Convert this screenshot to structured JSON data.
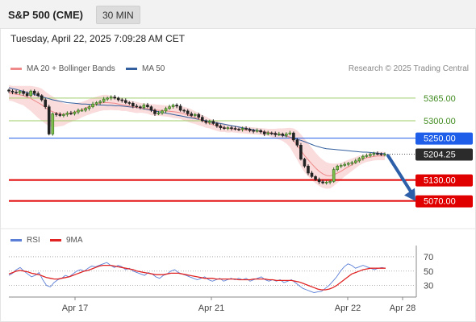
{
  "header": {
    "title": "S&P 500 (CME)",
    "timeframe": "30 MIN"
  },
  "timestamp": "Tuesday, April 22, 2025 7:09:28 AM CET",
  "legend": {
    "ma20": {
      "label": "MA 20 + Bollinger Bands",
      "color": "#f08a8a"
    },
    "ma50": {
      "label": "MA 50",
      "color": "#335f9e"
    }
  },
  "copyright": "Research © 2025 Trading Central",
  "rsi_legend": {
    "rsi": {
      "label": "RSI",
      "color": "#5b7fd6"
    },
    "ma9": {
      "label": "9MA",
      "color": "#e02424"
    }
  },
  "colors": {
    "resistance_line": "#9ccc65",
    "pivot_line": "#1f5ee8",
    "support_line": "#e00000",
    "band_fill": "#f9d6d6",
    "candle_up": "#2f6e1e",
    "candle_down": "#222222",
    "arrow": "#2d5fa8"
  },
  "chart_data": [
    {
      "type": "candlestick",
      "title": "S&P 500 (CME)",
      "x_tick_labels": [
        "Apr 17",
        "Apr 21",
        "Apr 22",
        "Apr 28"
      ],
      "y_range": [
        5000,
        5420
      ],
      "levels": [
        {
          "label": "5365.00",
          "value": 5365,
          "kind": "resistance"
        },
        {
          "label": "5300.00",
          "value": 5300,
          "kind": "resistance"
        },
        {
          "label": "5250.00",
          "value": 5250,
          "kind": "pivot"
        },
        {
          "label": "5130.00",
          "value": 5130,
          "kind": "support"
        },
        {
          "label": "5070.00",
          "value": 5070,
          "kind": "support"
        }
      ],
      "last_price": {
        "label": "5204.25",
        "value": 5204.25
      },
      "forecast": {
        "from": 5204.25,
        "to": 5070,
        "direction": "down"
      },
      "close_series": [
        5385,
        5382,
        5380,
        5384,
        5378,
        5372,
        5385,
        5378,
        5372,
        5360,
        5340,
        5262,
        5320,
        5318,
        5315,
        5318,
        5322,
        5320,
        5325,
        5330,
        5330,
        5335,
        5340,
        5348,
        5352,
        5355,
        5362,
        5365,
        5368,
        5365,
        5360,
        5358,
        5352,
        5350,
        5342,
        5340,
        5338,
        5345,
        5340,
        5330,
        5320,
        5322,
        5328,
        5335,
        5340,
        5345,
        5342,
        5330,
        5328,
        5320,
        5315,
        5318,
        5310,
        5300,
        5295,
        5298,
        5292,
        5285,
        5280,
        5278,
        5280,
        5278,
        5276,
        5275,
        5278,
        5276,
        5272,
        5270,
        5272,
        5268,
        5262,
        5265,
        5264,
        5260,
        5262,
        5258,
        5262,
        5265,
        5245,
        5230,
        5190,
        5170,
        5150,
        5140,
        5132,
        5125,
        5122,
        5124,
        5126,
        5160,
        5170,
        5172,
        5175,
        5178,
        5180,
        5185,
        5192,
        5198,
        5200,
        5204,
        5206,
        5205,
        5204,
        5204.25
      ],
      "ma20_series": [
        5380,
        5378,
        5376,
        5374,
        5372,
        5368,
        5364,
        5358,
        5352,
        5346,
        5338,
        5330,
        5326,
        5322,
        5320,
        5318,
        5320,
        5322,
        5325,
        5328,
        5332,
        5336,
        5340,
        5344,
        5347,
        5350,
        5352,
        5352,
        5351,
        5350,
        5348,
        5346,
        5344,
        5342,
        5340,
        5338,
        5337,
        5336,
        5334,
        5332,
        5331,
        5330,
        5329,
        5328,
        5327,
        5326,
        5325,
        5323,
        5320,
        5317,
        5313,
        5309,
        5305,
        5300,
        5296,
        5292,
        5288,
        5285,
        5282,
        5280,
        5278,
        5277,
        5276,
        5275,
        5274,
        5273,
        5272,
        5271,
        5270,
        5269,
        5268,
        5267,
        5265,
        5263,
        5262,
        5260,
        5257,
        5252,
        5242,
        5230,
        5215,
        5200,
        5188,
        5176,
        5165,
        5155,
        5148,
        5143,
        5142,
        5145,
        5150,
        5155,
        5162,
        5168,
        5174,
        5180,
        5186,
        5190,
        5194,
        5196,
        5198,
        5199,
        5199,
        5199
      ],
      "ma50_series": [
        5395,
        5392,
        5390,
        5387,
        5384,
        5381,
        5378,
        5375,
        5372,
        5369,
        5366,
        5363,
        5360,
        5358,
        5356,
        5354,
        5352,
        5351,
        5350,
        5349,
        5348,
        5348,
        5347,
        5346,
        5346,
        5345,
        5345,
        5344,
        5344,
        5343,
        5343,
        5342,
        5341,
        5340,
        5339,
        5338,
        5336,
        5334,
        5332,
        5330,
        5328,
        5326,
        5324,
        5322,
        5320,
        5318,
        5316,
        5314,
        5312,
        5310,
        5308,
        5306,
        5304,
        5302,
        5300,
        5298,
        5296,
        5294,
        5292,
        5290,
        5288,
        5286,
        5284,
        5282,
        5280,
        5278,
        5276,
        5274,
        5272,
        5270,
        5268,
        5266,
        5264,
        5262,
        5260,
        5258,
        5256,
        5253,
        5250,
        5247,
        5244,
        5240,
        5236,
        5232,
        5228,
        5225,
        5222,
        5220,
        5219,
        5218,
        5217,
        5216,
        5215,
        5214,
        5213,
        5212,
        5211,
        5210,
        5210,
        5209,
        5208,
        5207,
        5206,
        5206
      ],
      "band_halfwidth": [
        22,
        22,
        24,
        26,
        28,
        32,
        36,
        40,
        44,
        46,
        46,
        46,
        44,
        40,
        36,
        32,
        28,
        26,
        24,
        24,
        22,
        22,
        22,
        22,
        22,
        22,
        22,
        22,
        20,
        20,
        18,
        18,
        16,
        16,
        16,
        16,
        14,
        14,
        14,
        16,
        16,
        16,
        16,
        16,
        16,
        18,
        18,
        18,
        20,
        20,
        20,
        18,
        18,
        16,
        16,
        14,
        14,
        14,
        14,
        12,
        12,
        10,
        10,
        10,
        10,
        10,
        10,
        10,
        10,
        10,
        10,
        10,
        12,
        14,
        16,
        18,
        22,
        28,
        36,
        42,
        46,
        48,
        48,
        46,
        44,
        42,
        40,
        38,
        36,
        32,
        28,
        24,
        22,
        20,
        18,
        16,
        14,
        12,
        12,
        12,
        12,
        12,
        12,
        12
      ]
    },
    {
      "type": "line",
      "title": "RSI",
      "y_tick_labels": [
        "70",
        "50",
        "30"
      ],
      "y_ticks": [
        70,
        50,
        30
      ],
      "y_range": [
        15,
        80
      ],
      "series": [
        {
          "name": "RSI",
          "values": [
            44,
            47,
            52,
            55,
            50,
            46,
            42,
            44,
            48,
            38,
            30,
            28,
            34,
            38,
            40,
            44,
            42,
            46,
            50,
            52,
            50,
            54,
            57,
            56,
            58,
            60,
            62,
            58,
            55,
            58,
            56,
            52,
            54,
            50,
            48,
            46,
            44,
            48,
            46,
            42,
            40,
            44,
            46,
            50,
            52,
            48,
            46,
            44,
            42,
            40,
            38,
            40,
            42,
            38,
            36,
            38,
            40,
            36,
            38,
            40,
            38,
            40,
            38,
            40,
            36,
            38,
            40,
            42,
            38,
            36,
            38,
            36,
            38,
            34,
            36,
            38,
            34,
            30,
            26,
            24,
            22,
            20,
            21,
            22,
            26,
            30,
            36,
            42,
            50,
            56,
            60,
            58,
            54,
            56,
            58,
            56,
            54,
            52,
            54,
            55,
            54
          ]
        },
        {
          "name": "9MA",
          "values": [
            46,
            48,
            50,
            51,
            50,
            49,
            47,
            46,
            45,
            43,
            41,
            40,
            39,
            39,
            40,
            41,
            42,
            44,
            46,
            48,
            50,
            51,
            53,
            55,
            57,
            58,
            58,
            58,
            57,
            56,
            55,
            54,
            53,
            52,
            50,
            49,
            48,
            47,
            46,
            45,
            45,
            45,
            46,
            47,
            47,
            47,
            46,
            45,
            44,
            43,
            42,
            41,
            40,
            40,
            40,
            39,
            39,
            39,
            39,
            39,
            39,
            38,
            38,
            38,
            38,
            39,
            39,
            39,
            39,
            38,
            38,
            37,
            37,
            37,
            37,
            37,
            36,
            35,
            33,
            31,
            29,
            27,
            25,
            24,
            24,
            25,
            27,
            30,
            34,
            38,
            42,
            46,
            48,
            50,
            52,
            53,
            54,
            54,
            54,
            54,
            54
          ]
        }
      ]
    }
  ]
}
